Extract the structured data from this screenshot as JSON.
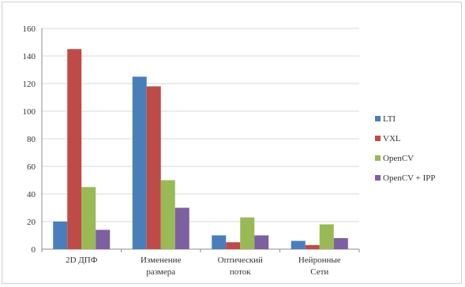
{
  "chart_data": {
    "type": "bar",
    "title": "",
    "xlabel": "",
    "ylabel": "",
    "ylim": [
      0,
      160
    ],
    "yticks": [
      0,
      20,
      40,
      60,
      80,
      100,
      120,
      140,
      160
    ],
    "grid": true,
    "legend_position": "right",
    "categories": [
      [
        "2D ДПФ"
      ],
      [
        "Изменение",
        "размера"
      ],
      [
        "Оптический",
        "поток"
      ],
      [
        "Нейронные",
        "Сети"
      ]
    ],
    "series": [
      {
        "name": "LTI",
        "color": "#4a7ebb",
        "values": [
          20,
          125,
          10,
          6
        ]
      },
      {
        "name": "VXL",
        "color": "#be4b48",
        "values": [
          145,
          118,
          5,
          3
        ]
      },
      {
        "name": "OpenCV",
        "color": "#98b954",
        "values": [
          45,
          50,
          23,
          18
        ]
      },
      {
        "name": "OpenCV + IPP",
        "color": "#7d60a0",
        "values": [
          14,
          30,
          10,
          8
        ]
      }
    ]
  }
}
